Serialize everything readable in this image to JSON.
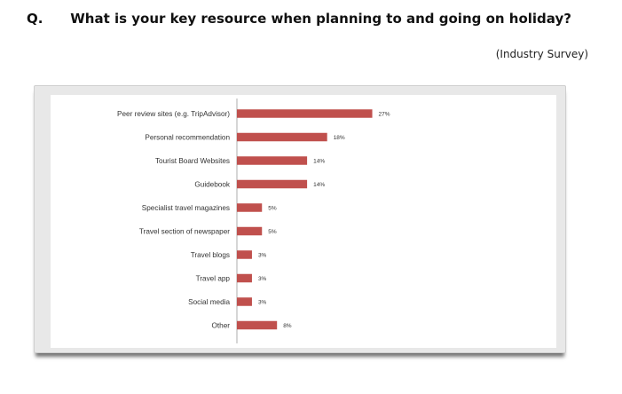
{
  "header": {
    "q_label": "Q.",
    "question": "What is your key resource when planning to and going on holiday?",
    "source": "(Industry Survey)"
  },
  "colors": {
    "bar": "#c0504d"
  },
  "chart_data": {
    "type": "bar",
    "orientation": "horizontal",
    "categories": [
      "Peer review sites (e.g. TripAdvisor)",
      "Personal recommendation",
      "Tourist Board Websites",
      "Guidebook",
      "Specialist travel magazines",
      "Travel section of newspaper",
      "Travel blogs",
      "Travel app",
      "Social media",
      "Other"
    ],
    "values": [
      27,
      18,
      14,
      14,
      5,
      5,
      3,
      3,
      3,
      8
    ],
    "value_labels": [
      "27%",
      "18%",
      "14%",
      "14%",
      "5%",
      "5%",
      "3%",
      "3%",
      "3%",
      "8%"
    ],
    "xlim": [
      0,
      30
    ],
    "grid": false
  }
}
